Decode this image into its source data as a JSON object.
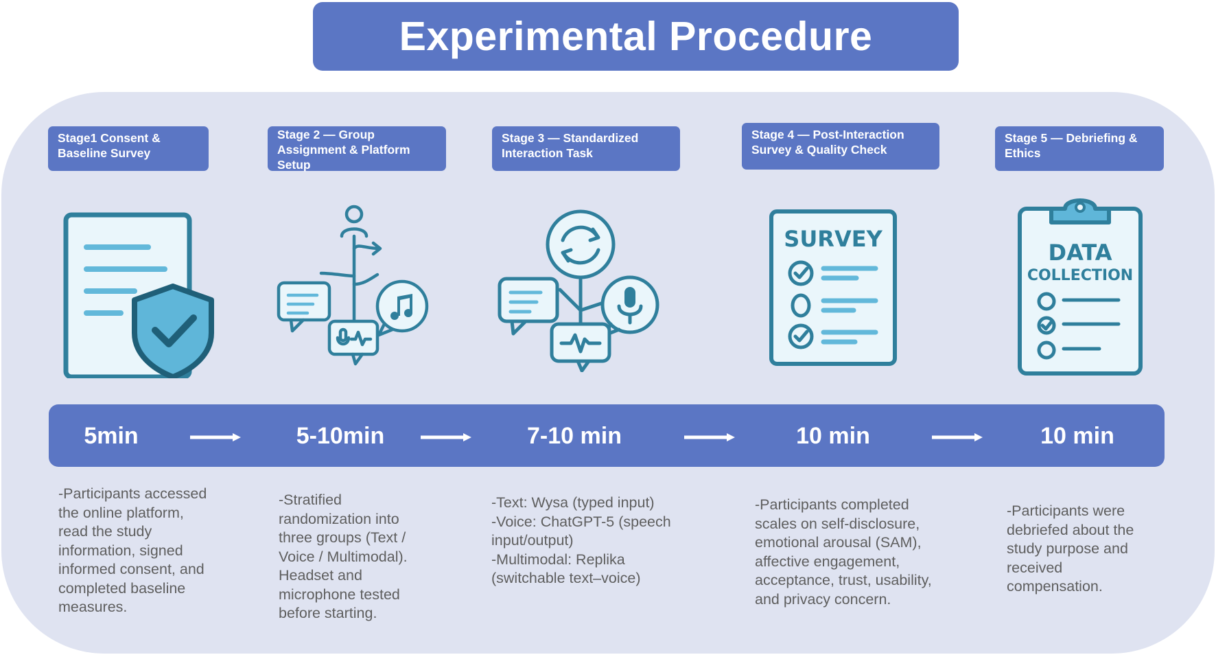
{
  "title": "Experimental Procedure",
  "stages": [
    {
      "label": "Stage1 Consent & Baseline Survey",
      "time": "5min",
      "description": "-Participants accessed the online platform, read the study information, signed informed consent, and completed baseline measures.",
      "icon": "document-shield-icon"
    },
    {
      "label": "Stage 2 — Group Assignment & Platform Setup",
      "time": "5-10min",
      "description": "-Stratified randomization into three groups (Text / Voice / Multimodal). Headset and microphone tested before starting.",
      "icon": "branching-channels-icon"
    },
    {
      "label": "Stage 3 — Standardized Interaction Task",
      "time": "7-10 min",
      "description": "-Text: Wysa (typed input)\n-Voice: ChatGPT-5 (speech input/output)\n-Multimodal: Replika (switchable text–voice)",
      "icon": "interaction-hub-icon"
    },
    {
      "label": "Stage 4 — Post-Interaction Survey & Quality Check",
      "time": "10 min",
      "description": "-Participants completed scales on self-disclosure, emotional arousal (SAM), affective engagement, acceptance, trust, usability, and privacy concern.",
      "icon": "survey-icon",
      "icon_text": "SURVEY"
    },
    {
      "label": "Stage 5 — Debriefing & Ethics",
      "time": "10 min",
      "description": "-Participants were debriefed about the study purpose and received compensation.",
      "icon": "data-collection-clipboard-icon",
      "icon_text": [
        "DATA",
        "COLLECTION"
      ]
    }
  ],
  "colors": {
    "accent": "#5b76c4",
    "panel": "#dfe3f1",
    "icon_stroke": "#2f7f9c",
    "icon_fill": "#eaf6fb",
    "icon_light": "#62b8da",
    "text": "#5e5e5e"
  }
}
